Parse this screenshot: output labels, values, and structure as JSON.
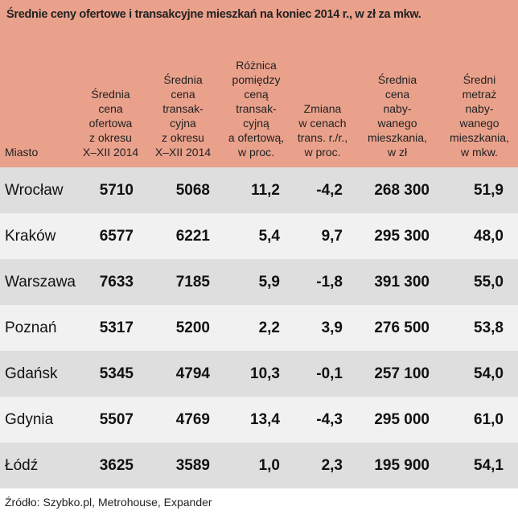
{
  "title": "Średnie ceny ofertowe i transakcyjne mieszkań na koniec 2014 r., w zł za mkw.",
  "table": {
    "header": [
      [
        "Miasto"
      ],
      [
        "Średnia",
        "cena",
        "ofertowa",
        "z okresu",
        "X–XII 2014"
      ],
      [
        "Średnia",
        "cena",
        "transak-",
        "cyjna",
        "z okresu",
        "X–XII 2014"
      ],
      [
        "Różnica",
        "pomiędzy",
        "ceną",
        "transak-",
        "cyjną",
        "a ofertową,",
        "w proc."
      ],
      [
        "Zmiana",
        "w cenach",
        "trans. r./r.,",
        "w proc."
      ],
      [
        "Średnia",
        "cena",
        "naby-",
        "wanego",
        "mieszkania,",
        "w zł"
      ],
      [
        "Średni",
        "metraż",
        "naby-",
        "wanego",
        "mieszkania,",
        "w mkw."
      ]
    ],
    "rows": [
      [
        "Wrocław",
        "5710",
        "5068",
        "11,2",
        "-4,2",
        "268 300",
        "51,9"
      ],
      [
        "Kraków",
        "6577",
        "6221",
        "5,4",
        "9,7",
        "295 300",
        "48,0"
      ],
      [
        "Warszawa",
        "7633",
        "7185",
        "5,9",
        "-1,8",
        "391 300",
        "55,0"
      ],
      [
        "Poznań",
        "5317",
        "5200",
        "2,2",
        "3,9",
        "276 500",
        "53,8"
      ],
      [
        "Gdańsk",
        "5345",
        "4794",
        "10,3",
        "-0,1",
        "257 100",
        "54,0"
      ],
      [
        "Gdynia",
        "5507",
        "4769",
        "13,4",
        "-4,3",
        "295 000",
        "61,0"
      ],
      [
        "Łódź",
        "3625",
        "3589",
        "1,0",
        "2,3",
        "195 900",
        "54,1"
      ]
    ]
  },
  "source": "Źródło: Szybko.pl, Metrohouse, Expander"
}
